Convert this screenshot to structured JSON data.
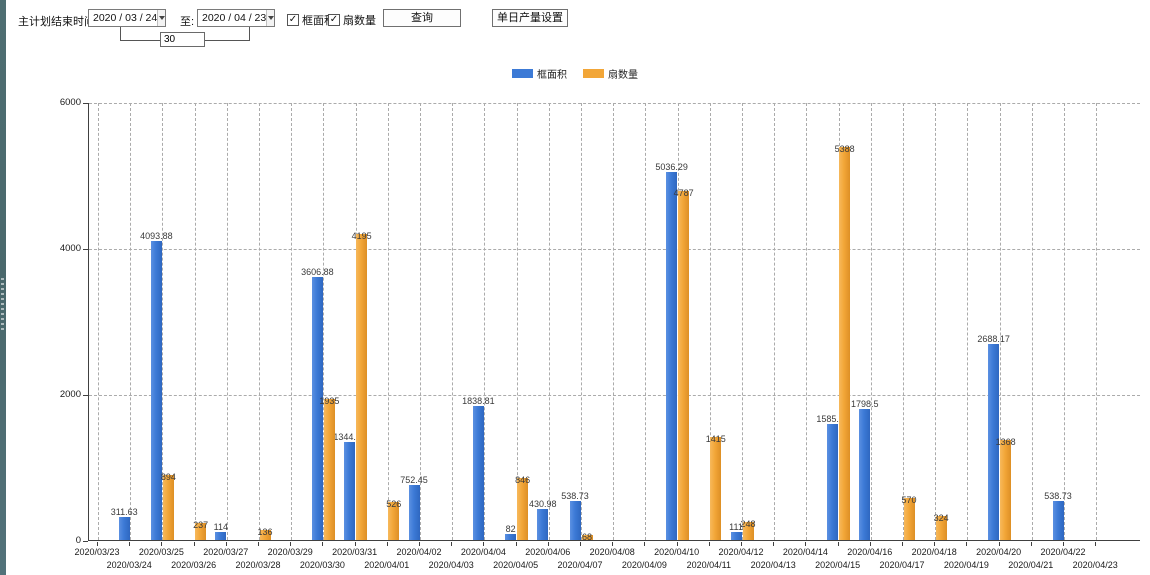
{
  "toolbar": {
    "end_time_label": "主计划结束时间:",
    "start_date": "2020 / 03 / 24",
    "to_label": "至:",
    "end_date": "2020 / 04 / 23",
    "interval_days": "30",
    "checkboxes": [
      {
        "label": "框面积",
        "checked": true
      },
      {
        "label": "扇数量",
        "checked": true
      }
    ],
    "check_glyph": "✓",
    "query_button": "查询",
    "daily_output_button": "单日产量设置"
  },
  "legend": {
    "items": [
      {
        "label": "框面积",
        "color": "#3C7AD6"
      },
      {
        "label": "扇数量",
        "color": "#F2A638"
      }
    ]
  },
  "chart_data": {
    "type": "bar",
    "title": "",
    "xlabel": "",
    "ylabel": "",
    "ylim": [
      0,
      6000
    ],
    "yticks": [
      0,
      2000,
      4000,
      6000
    ],
    "grid": true,
    "legend_position": "top",
    "categories": [
      "2020/03/23",
      "2020/03/24",
      "2020/03/25",
      "2020/03/26",
      "2020/03/27",
      "2020/03/28",
      "2020/03/29",
      "2020/03/30",
      "2020/03/31",
      "2020/04/01",
      "2020/04/02",
      "2020/04/03",
      "2020/04/04",
      "2020/04/05",
      "2020/04/06",
      "2020/04/07",
      "2020/04/08",
      "2020/04/09",
      "2020/04/10",
      "2020/04/11",
      "2020/04/12",
      "2020/04/13",
      "2020/04/14",
      "2020/04/15",
      "2020/04/16",
      "2020/04/17",
      "2020/04/18",
      "2020/04/19",
      "2020/04/20",
      "2020/04/21",
      "2020/04/22",
      "2020/04/23"
    ],
    "series": [
      {
        "name": "框面积",
        "color": "#3C7AD6",
        "values": [
          null,
          311.63,
          4093.88,
          null,
          114,
          null,
          null,
          3606.88,
          1344.95,
          null,
          752.45,
          null,
          1838.81,
          82,
          430.98,
          538.73,
          null,
          null,
          5036.29,
          null,
          111,
          null,
          null,
          1585.96,
          1798.5,
          null,
          null,
          null,
          2688.17,
          null,
          538.73,
          null
        ]
      },
      {
        "name": "扇数量",
        "color": "#F2A638",
        "values": [
          null,
          null,
          894,
          237,
          null,
          136,
          null,
          1935,
          4195,
          526,
          null,
          null,
          null,
          846,
          null,
          68,
          null,
          null,
          4787,
          1415,
          248,
          null,
          null,
          5388,
          null,
          570,
          324,
          null,
          1368,
          null,
          null,
          null
        ]
      }
    ]
  }
}
